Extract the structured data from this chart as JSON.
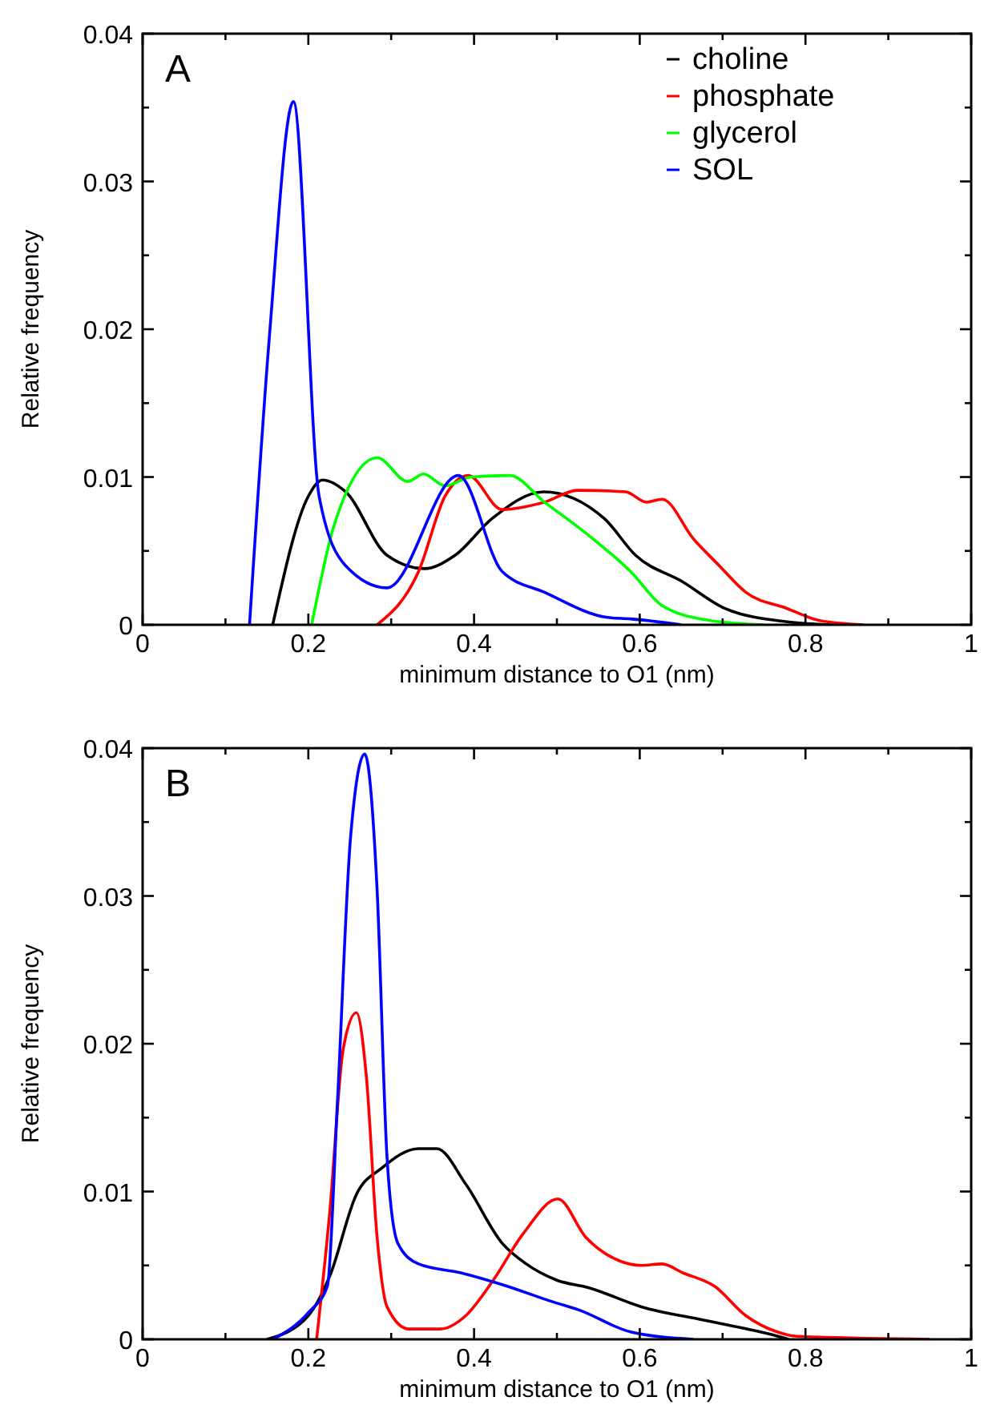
{
  "chart_data": [
    {
      "type": "line",
      "title": "A",
      "xlabel": "minimum distance to O1 (nm)",
      "ylabel": "Relative frequency",
      "xlim": [
        0,
        1
      ],
      "ylim": [
        0,
        0.04
      ],
      "xticks": [
        0,
        {
          "value": 0.1,
          "label": null
        },
        0.2,
        {
          "value": 0.3,
          "label": null
        },
        0.4,
        {
          "value": 0.5,
          "label": null
        },
        0.6,
        {
          "value": 0.7,
          "label": null
        },
        0.8,
        {
          "value": 0.9,
          "label": null
        },
        1
      ],
      "yticks": [
        0,
        {
          "value": 0.005,
          "label": null
        },
        0.01,
        {
          "value": 0.015,
          "label": null
        },
        0.02,
        {
          "value": 0.025,
          "label": null
        },
        0.03,
        {
          "value": 0.035,
          "label": null
        },
        0.04
      ],
      "legend": "top right",
      "grid": false,
      "marker": "none",
      "line_style": "solid",
      "series": [
        {
          "name": "choline",
          "color": "#000000",
          "x": [
            0.157,
            0.2,
            0.217,
            0.245,
            0.295,
            0.34,
            0.377,
            0.422,
            0.484,
            0.557,
            0.595,
            0.652,
            0.703,
            0.778,
            0.83
          ],
          "values": [
            0,
            0.0087,
            0.0098,
            0.009,
            0.0047,
            0.0038,
            0.0047,
            0.0072,
            0.009,
            0.0072,
            0.0047,
            0.0029,
            0.0011,
            0.0002,
            0
          ]
        },
        {
          "name": "phosphate",
          "color": "#ff0000",
          "x": [
            0.283,
            0.333,
            0.365,
            0.393,
            0.434,
            0.485,
            0.525,
            0.583,
            0.608,
            0.627,
            0.665,
            0.696,
            0.728,
            0.778,
            0.816,
            0.87
          ],
          "values": [
            0,
            0.0036,
            0.0087,
            0.0101,
            0.0078,
            0.0083,
            0.0091,
            0.009,
            0.0083,
            0.0085,
            0.0058,
            0.004,
            0.0022,
            0.0011,
            0.0003,
            0
          ]
        },
        {
          "name": "glycerol",
          "color": "#00ff00",
          "x": [
            0.204,
            0.232,
            0.283,
            0.32,
            0.339,
            0.365,
            0.396,
            0.443,
            0.485,
            0.535,
            0.589,
            0.627,
            0.684,
            0.75
          ],
          "values": [
            0,
            0.0069,
            0.0113,
            0.0097,
            0.0102,
            0.0094,
            0.01,
            0.0101,
            0.0083,
            0.0062,
            0.0036,
            0.0013,
            0.0003,
            0
          ]
        },
        {
          "name": "SOL",
          "color": "#0000ff",
          "x": [
            0.129,
            0.153,
            0.182,
            0.213,
            0.245,
            0.295,
            0.381,
            0.434,
            0.485,
            0.561,
            0.589,
            0.65
          ],
          "values": [
            0,
            0.0195,
            0.0354,
            0.0087,
            0.004,
            0.0025,
            0.0101,
            0.0036,
            0.0022,
            0.0005,
            0.0004,
            0
          ]
        }
      ]
    },
    {
      "type": "line",
      "title": "B",
      "xlabel": "minimum distance to O1 (nm)",
      "ylabel": "Relative frequency",
      "xlim": [
        0,
        1
      ],
      "ylim": [
        0,
        0.04
      ],
      "xticks": [
        0,
        {
          "value": 0.1,
          "label": null
        },
        0.2,
        {
          "value": 0.3,
          "label": null
        },
        0.4,
        {
          "value": 0.5,
          "label": null
        },
        0.6,
        {
          "value": 0.7,
          "label": null
        },
        0.8,
        {
          "value": 0.9,
          "label": null
        },
        1
      ],
      "yticks": [
        0,
        {
          "value": 0.005,
          "label": null
        },
        0.01,
        {
          "value": 0.015,
          "label": null
        },
        0.02,
        {
          "value": 0.025,
          "label": null
        },
        0.03,
        {
          "value": 0.035,
          "label": null
        },
        0.04
      ],
      "grid": false,
      "marker": "none",
      "line_style": "solid",
      "series": [
        {
          "color": "#000000",
          "x": [
            0.15,
            0.2,
            0.226,
            0.258,
            0.289,
            0.333,
            0.355,
            0.39,
            0.434,
            0.463,
            0.5,
            0.538,
            0.602,
            0.677,
            0.753,
            0.78
          ],
          "values": [
            0,
            0.0016,
            0.0043,
            0.0098,
            0.0116,
            0.0129,
            0.0129,
            0.0105,
            0.0065,
            0.0051,
            0.004,
            0.0035,
            0.0022,
            0.0013,
            0.0004,
            0
          ]
        },
        {
          "color": "#ff0000",
          "x": [
            0.21,
            0.226,
            0.242,
            0.258,
            0.27,
            0.283,
            0.295,
            0.321,
            0.359,
            0.39,
            0.422,
            0.46,
            0.501,
            0.535,
            0.576,
            0.602,
            0.627,
            0.652,
            0.69,
            0.728,
            0.766,
            0.79,
            0.95
          ],
          "values": [
            0,
            0.0087,
            0.0196,
            0.0221,
            0.0178,
            0.0069,
            0.0022,
            0.0007,
            0.0007,
            0.0016,
            0.0039,
            0.0072,
            0.0095,
            0.0069,
            0.0053,
            0.005,
            0.0051,
            0.0045,
            0.0036,
            0.0016,
            0.0005,
            0.0002,
            0
          ]
        },
        {
          "color": "#0000ff",
          "x": [
            0.157,
            0.2,
            0.223,
            0.235,
            0.251,
            0.268,
            0.283,
            0.295,
            0.308,
            0.333,
            0.384,
            0.434,
            0.497,
            0.526,
            0.589,
            0.665
          ],
          "values": [
            0,
            0.0018,
            0.0036,
            0.0159,
            0.034,
            0.0396,
            0.0304,
            0.0123,
            0.0065,
            0.0051,
            0.0045,
            0.0037,
            0.0025,
            0.002,
            0.0005,
            0
          ]
        }
      ]
    }
  ]
}
